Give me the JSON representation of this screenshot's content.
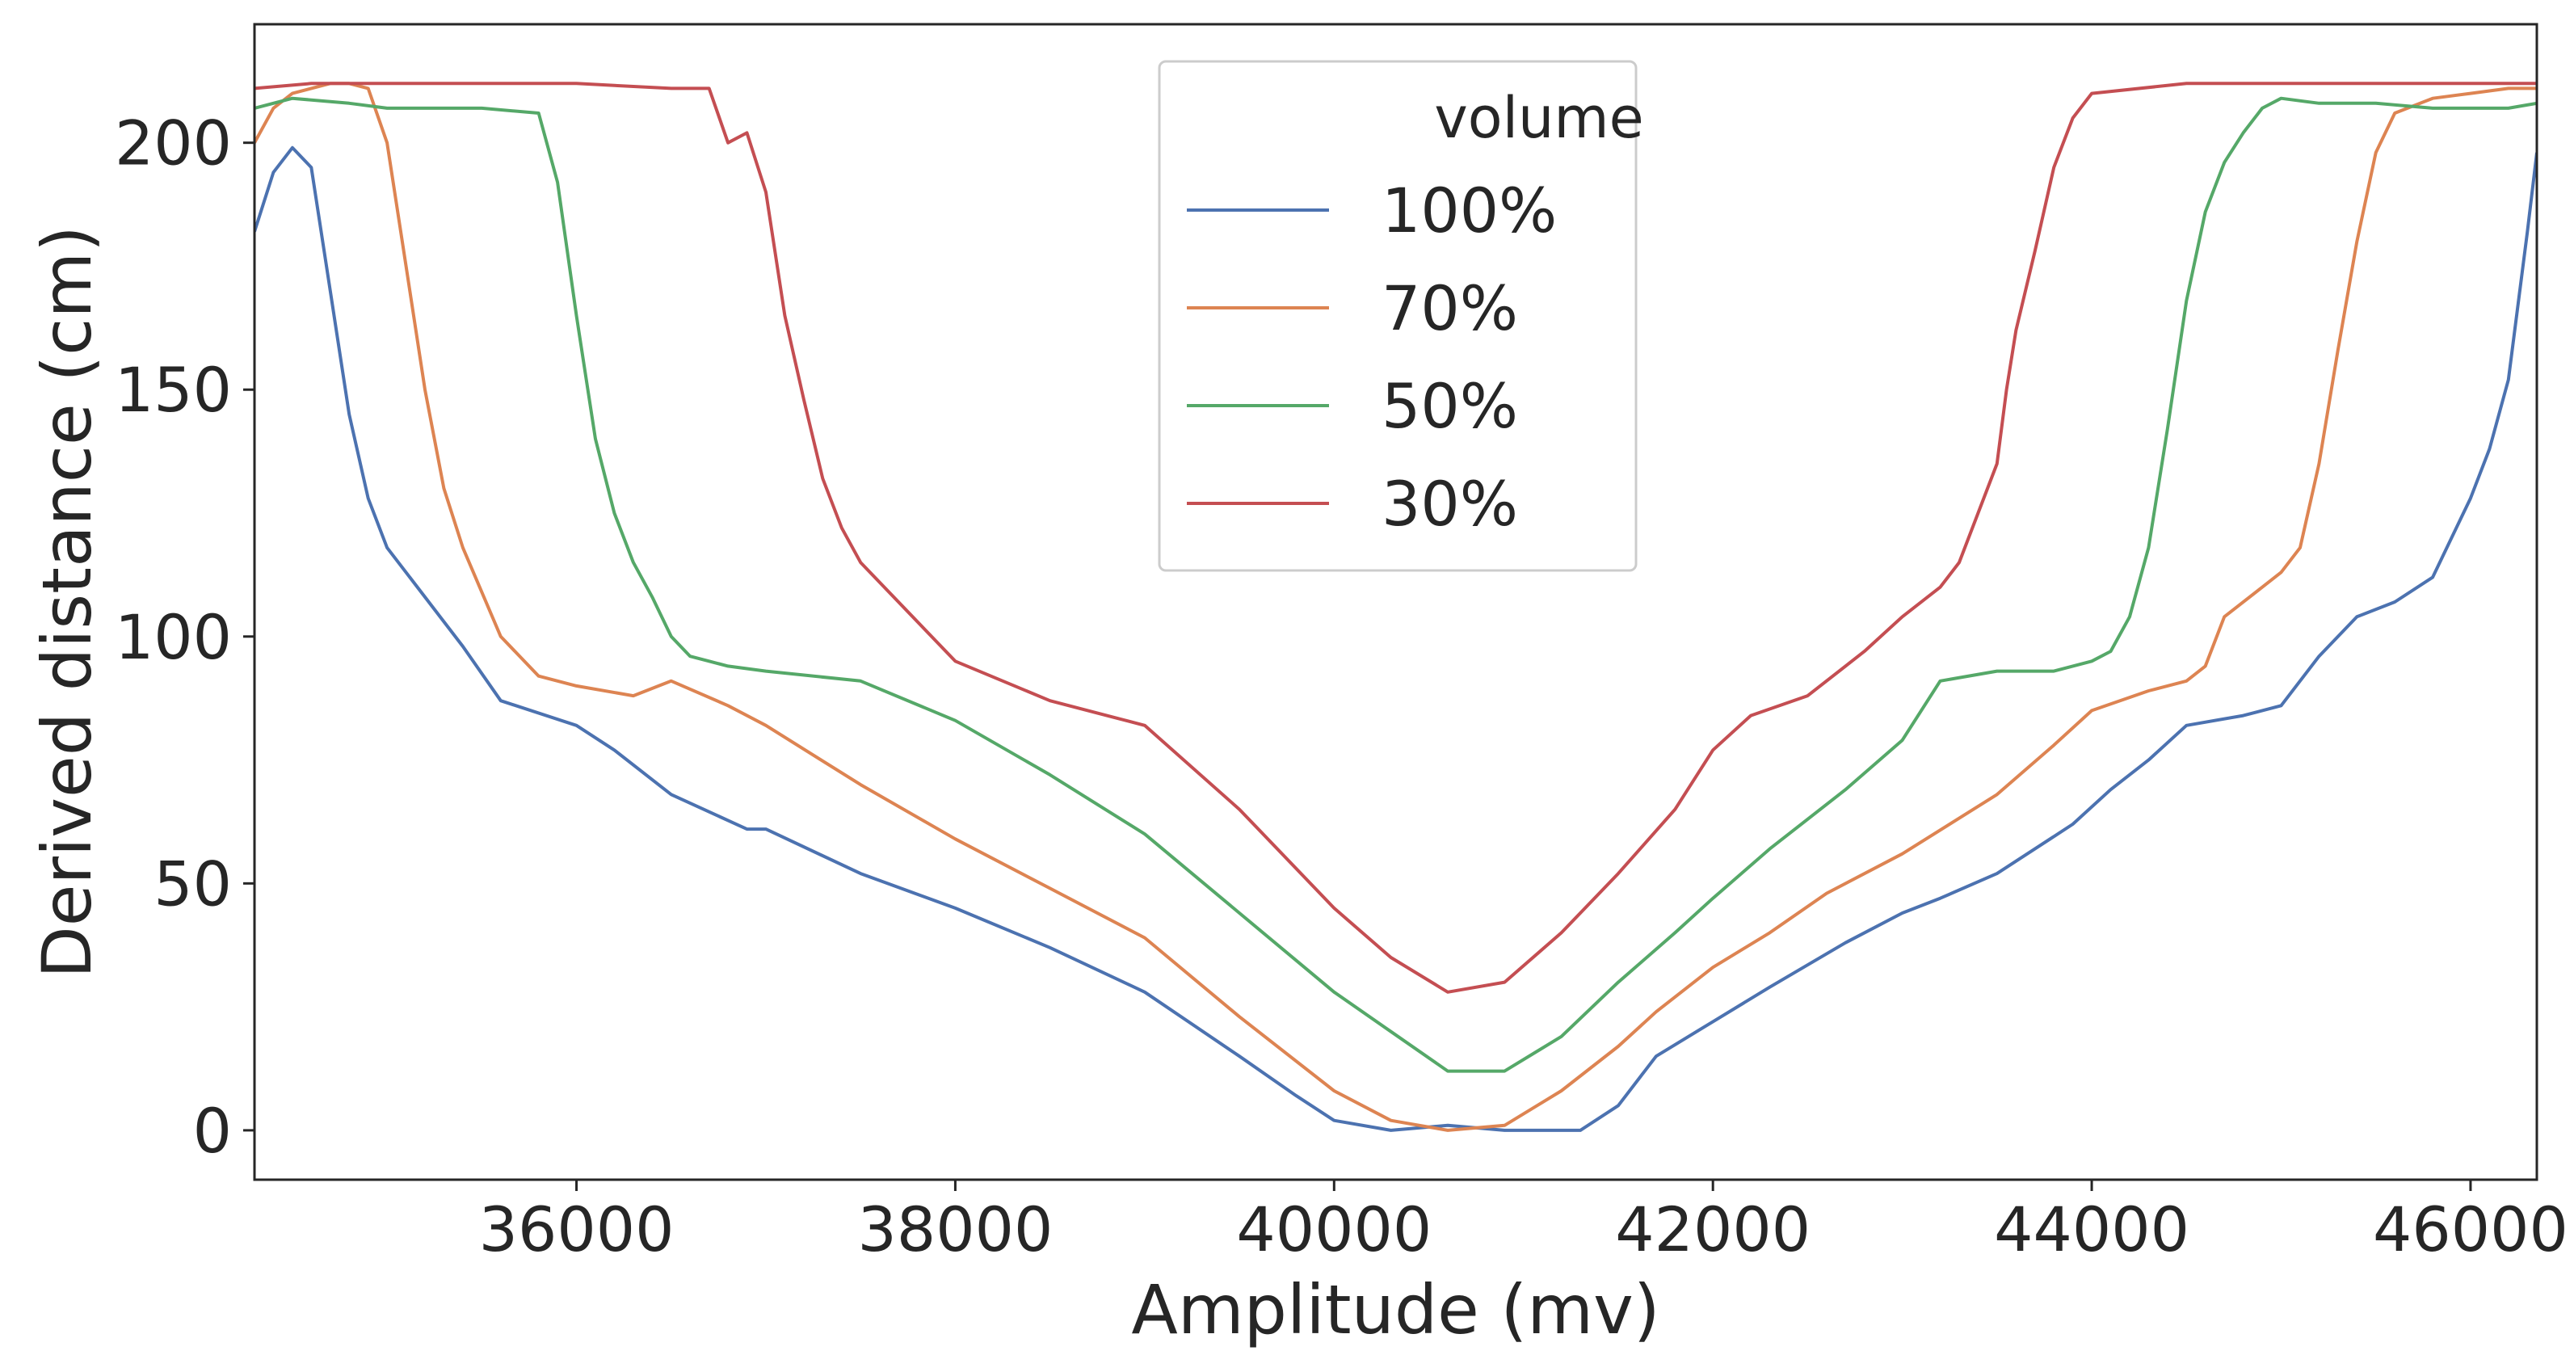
{
  "chart_data": {
    "type": "line",
    "title": "",
    "xlabel": "Amplitude (mv)",
    "ylabel": "Derived distance (cm)",
    "xlim": [
      34300,
      46350
    ],
    "ylim": [
      -10,
      224
    ],
    "xticks": [
      36000,
      38000,
      40000,
      42000,
      44000,
      46000
    ],
    "yticks": [
      0,
      50,
      100,
      150,
      200
    ],
    "grid": false,
    "legend": {
      "title": "volume",
      "position": "upper-center"
    },
    "series": [
      {
        "name": "100%",
        "color": "#4c72b0",
        "x": [
          34300,
          34400,
          34500,
          34600,
          34700,
          34800,
          34900,
          35000,
          35200,
          35400,
          35600,
          36000,
          36200,
          36500,
          36900,
          37000,
          37500,
          38000,
          38500,
          39000,
          39500,
          39800,
          40000,
          40300,
          40600,
          40900,
          41100,
          41300,
          41500,
          41700,
          42000,
          42300,
          42700,
          43000,
          43200,
          43500,
          43700,
          43900,
          44100,
          44300,
          44500,
          44800,
          45000,
          45200,
          45400,
          45600,
          45800,
          46000,
          46100,
          46200,
          46300,
          46350
        ],
        "y": [
          182,
          194,
          199,
          195,
          170,
          145,
          128,
          118,
          108,
          98,
          87,
          82,
          77,
          68,
          61,
          61,
          52,
          45,
          37,
          28,
          15,
          7,
          2,
          0,
          1,
          0,
          0,
          0,
          5,
          15,
          22,
          29,
          38,
          44,
          47,
          52,
          57,
          62,
          69,
          75,
          82,
          84,
          86,
          96,
          104,
          107,
          112,
          128,
          138,
          152,
          182,
          198
        ]
      },
      {
        "name": "70%",
        "color": "#dd8452",
        "x": [
          34300,
          34400,
          34500,
          34600,
          34700,
          34800,
          34900,
          35000,
          35100,
          35200,
          35300,
          35400,
          35600,
          35800,
          36000,
          36300,
          36500,
          36800,
          37000,
          37500,
          38000,
          38500,
          39000,
          39500,
          40000,
          40300,
          40600,
          40900,
          41200,
          41500,
          41700,
          42000,
          42300,
          42600,
          43000,
          43500,
          43800,
          44000,
          44300,
          44500,
          44600,
          44700,
          44900,
          45000,
          45100,
          45200,
          45300,
          45400,
          45500,
          45600,
          45800,
          46000,
          46200,
          46350
        ],
        "y": [
          200,
          207,
          210,
          211,
          212,
          212,
          211,
          200,
          175,
          150,
          130,
          118,
          100,
          92,
          90,
          88,
          91,
          86,
          82,
          70,
          59,
          49,
          39,
          23,
          8,
          2,
          0,
          1,
          8,
          17,
          24,
          33,
          40,
          48,
          56,
          68,
          78,
          85,
          89,
          91,
          94,
          104,
          110,
          113,
          118,
          135,
          158,
          180,
          198,
          206,
          209,
          210,
          211,
          211
        ]
      },
      {
        "name": "50%",
        "color": "#55a868",
        "x": [
          34300,
          34500,
          34800,
          35000,
          35500,
          35800,
          35900,
          36000,
          36100,
          36200,
          36300,
          36400,
          36500,
          36600,
          36700,
          36800,
          37000,
          37500,
          38000,
          38500,
          39000,
          39500,
          40000,
          40300,
          40600,
          40900,
          41200,
          41500,
          41800,
          42000,
          42300,
          42700,
          43000,
          43200,
          43500,
          43800,
          44000,
          44100,
          44200,
          44300,
          44400,
          44500,
          44600,
          44700,
          44800,
          44900,
          45000,
          45200,
          45500,
          45800,
          46000,
          46200,
          46350
        ],
        "y": [
          207,
          209,
          208,
          207,
          207,
          206,
          192,
          165,
          140,
          125,
          115,
          108,
          100,
          96,
          95,
          94,
          93,
          91,
          83,
          72,
          60,
          44,
          28,
          20,
          12,
          12,
          19,
          30,
          40,
          47,
          57,
          69,
          79,
          91,
          93,
          93,
          95,
          97,
          104,
          118,
          142,
          168,
          186,
          196,
          202,
          207,
          209,
          208,
          208,
          207,
          207,
          207,
          208
        ]
      },
      {
        "name": "30%",
        "color": "#c44e52",
        "x": [
          34300,
          34600,
          35000,
          35500,
          36000,
          36500,
          36700,
          36800,
          36900,
          37000,
          37100,
          37200,
          37300,
          37400,
          37500,
          37700,
          38000,
          38500,
          39000,
          39500,
          40000,
          40300,
          40600,
          40900,
          41200,
          41500,
          41800,
          42000,
          42200,
          42500,
          42800,
          43000,
          43200,
          43300,
          43400,
          43500,
          43550,
          43600,
          43700,
          43800,
          43900,
          44000,
          44500,
          45000,
          45500,
          46000,
          46350
        ],
        "y": [
          211,
          212,
          212,
          212,
          212,
          211,
          211,
          200,
          202,
          190,
          165,
          148,
          132,
          122,
          115,
          107,
          95,
          87,
          82,
          65,
          45,
          35,
          28,
          30,
          40,
          52,
          65,
          77,
          84,
          88,
          97,
          104,
          110,
          115,
          125,
          135,
          150,
          162,
          178,
          195,
          205,
          210,
          212,
          212,
          212,
          212,
          212
        ]
      }
    ]
  }
}
